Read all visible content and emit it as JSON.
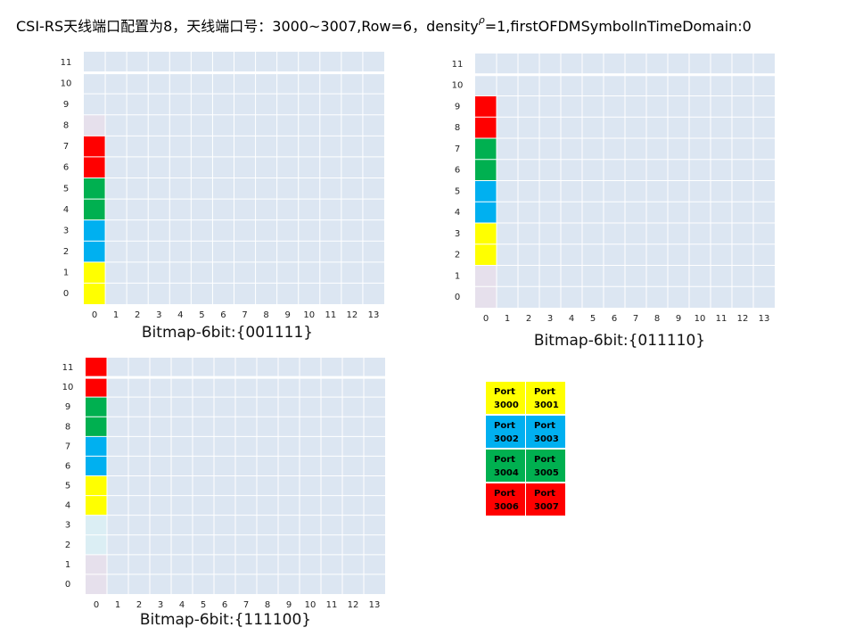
{
  "title": [
    "CSI-RS天线端口配置为8，天线端口号：3000~3007,Row=6，density",
    "ρ",
    "=1,firstOFDMSymbolInTimeDomain:0"
  ],
  "row_labels": [
    0,
    1,
    2,
    3,
    4,
    5,
    6,
    7,
    8,
    9,
    10,
    11
  ],
  "col_labels": [
    0,
    1,
    2,
    3,
    4,
    5,
    6,
    7,
    8,
    9,
    10,
    11,
    12,
    13
  ],
  "cell_color": "#dce6f2",
  "grids": [
    {
      "caption": "Bitmap-6bit:{001111}",
      "column0": [
        "#ffff00",
        "#ffff00",
        "#00b0f0",
        "#00b0f0",
        "#00b050",
        "#00b050",
        "#ff0000",
        "#ff0000",
        "#e6e0ec",
        null,
        null,
        null
      ]
    },
    {
      "caption": "Bitmap-6bit:{011110}",
      "column0": [
        "#e6e0ec",
        "#e6e0ec",
        "#ffff00",
        "#ffff00",
        "#00b0f0",
        "#00b0f0",
        "#00b050",
        "#00b050",
        "#ff0000",
        "#ff0000",
        null,
        null
      ]
    },
    {
      "caption": "Bitmap-6bit:{111100}",
      "column0": [
        "#e6e0ec",
        "#e6e0ec",
        "#dbeef4",
        "#dbeef4",
        "#ffff00",
        "#ffff00",
        "#00b0f0",
        "#00b0f0",
        "#00b050",
        "#00b050",
        "#ff0000",
        "#ff0000"
      ]
    }
  ],
  "legend": [
    {
      "label": "Port 3000",
      "color": "#ffff00"
    },
    {
      "label": "Port 3001",
      "color": "#ffff00"
    },
    {
      "label": "Port 3002",
      "color": "#00b0f0"
    },
    {
      "label": "Port 3003",
      "color": "#00b0f0"
    },
    {
      "label": "Port 3004",
      "color": "#00b050"
    },
    {
      "label": "Port 3005",
      "color": "#00b050"
    },
    {
      "label": "Port 3006",
      "color": "#ff0000"
    },
    {
      "label": "Port 3007",
      "color": "#ff0000"
    }
  ]
}
